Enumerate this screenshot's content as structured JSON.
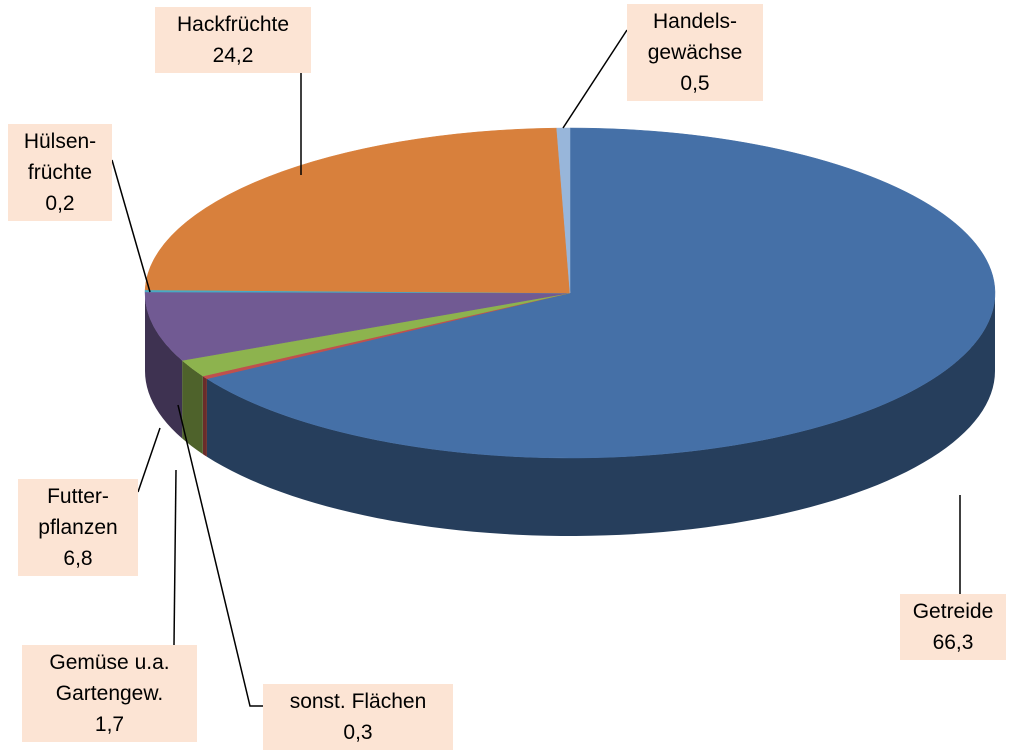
{
  "chart_data": {
    "type": "pie",
    "categories": [
      "Getreide",
      "sonst. Flächen",
      "Gemüse u.a.\nGartengew.",
      "Futter-\npflanzen",
      "Hülsen-\nfrüchte",
      "Hackfrüchte",
      "Handels-\ngewächse"
    ],
    "values": [
      66.3,
      0.3,
      1.7,
      6.8,
      0.2,
      24.2,
      0.5
    ],
    "value_labels": [
      "66,3",
      "0,3",
      "1,7",
      "6,8",
      "0,2",
      "24,2",
      "0,5"
    ],
    "colors": [
      "#4570a7",
      "#c0504d",
      "#8db34e",
      "#715a93",
      "#48aac4",
      "#d8803c",
      "#98b6da"
    ]
  }
}
